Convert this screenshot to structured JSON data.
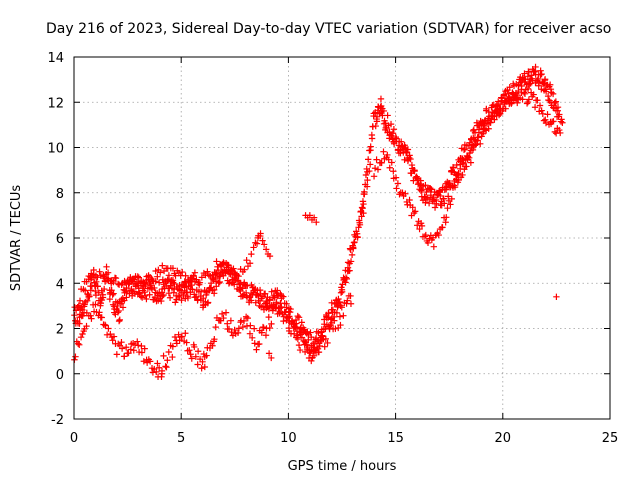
{
  "chart_data": {
    "type": "scatter",
    "title": "Day 216 of 2023, Sidereal Day-to-day VTEC variation (SDTVAR) for receiver acso",
    "xlabel": "GPS time / hours",
    "ylabel": "SDTVAR / TECUs",
    "xlim": [
      0,
      25
    ],
    "ylim": [
      -2,
      14
    ],
    "xticks": [
      "0",
      "5",
      "10",
      "15",
      "20",
      "25"
    ],
    "yticks": [
      "-2",
      "0",
      "2",
      "4",
      "6",
      "8",
      "10",
      "12",
      "14"
    ],
    "grid": true,
    "marker": "+",
    "series": [
      {
        "name": "SDTVAR",
        "color": "#ff0000",
        "trend": [
          [
            0.0,
            2.8
          ],
          [
            0.3,
            2.4
          ],
          [
            0.6,
            3.6
          ],
          [
            0.9,
            4.3
          ],
          [
            1.2,
            3.0
          ],
          [
            1.5,
            4.4
          ],
          [
            1.8,
            3.4
          ],
          [
            2.1,
            2.6
          ],
          [
            2.4,
            3.6
          ],
          [
            2.8,
            3.9
          ],
          [
            3.2,
            3.8
          ],
          [
            3.6,
            3.7
          ],
          [
            4.0,
            3.6
          ],
          [
            4.4,
            3.9
          ],
          [
            4.8,
            3.5
          ],
          [
            5.2,
            3.7
          ],
          [
            5.6,
            3.9
          ],
          [
            6.0,
            3.3
          ],
          [
            6.5,
            3.8
          ],
          [
            7.0,
            4.6
          ],
          [
            7.5,
            4.2
          ],
          [
            8.0,
            3.6
          ],
          [
            8.5,
            3.4
          ],
          [
            9.0,
            3.1
          ],
          [
            9.5,
            3.3
          ],
          [
            10.0,
            2.7
          ],
          [
            10.4,
            2.2
          ],
          [
            10.8,
            1.6
          ],
          [
            11.2,
            1.2
          ],
          [
            11.6,
            1.9
          ],
          [
            12.0,
            2.6
          ],
          [
            12.4,
            3.4
          ],
          [
            12.7,
            4.4
          ],
          [
            13.0,
            5.5
          ],
          [
            13.2,
            6.2
          ],
          [
            13.5,
            7.8
          ],
          [
            13.8,
            9.6
          ],
          [
            14.0,
            11.2
          ],
          [
            14.2,
            11.8
          ],
          [
            14.4,
            11.6
          ],
          [
            14.6,
            11.1
          ],
          [
            14.8,
            10.6
          ],
          [
            15.1,
            10.2
          ],
          [
            15.4,
            9.8
          ],
          [
            15.7,
            9.2
          ],
          [
            16.0,
            8.6
          ],
          [
            16.3,
            8.1
          ],
          [
            16.6,
            7.8
          ],
          [
            16.9,
            7.6
          ],
          [
            17.2,
            7.8
          ],
          [
            17.5,
            8.3
          ],
          [
            17.8,
            9.0
          ],
          [
            18.1,
            9.6
          ],
          [
            18.4,
            10.0
          ],
          [
            18.7,
            10.5
          ],
          [
            19.0,
            11.0
          ],
          [
            19.4,
            11.5
          ],
          [
            19.8,
            11.9
          ],
          [
            20.2,
            12.2
          ],
          [
            20.6,
            12.5
          ],
          [
            21.0,
            12.9
          ],
          [
            21.4,
            13.2
          ],
          [
            21.8,
            13.0
          ],
          [
            22.2,
            12.4
          ],
          [
            22.5,
            11.6
          ],
          [
            22.8,
            10.8
          ]
        ],
        "low_branch": [
          [
            0.0,
            1.0
          ],
          [
            0.5,
            2.2
          ],
          [
            1.0,
            2.8
          ],
          [
            1.5,
            2.0
          ],
          [
            2.0,
            1.2
          ],
          [
            2.5,
            0.9
          ],
          [
            3.0,
            1.1
          ],
          [
            3.5,
            0.6
          ],
          [
            4.0,
            0.1
          ],
          [
            4.5,
            1.0
          ],
          [
            5.0,
            1.8
          ],
          [
            5.5,
            1.0
          ],
          [
            6.0,
            0.4
          ],
          [
            6.5,
            1.8
          ],
          [
            7.0,
            2.6
          ],
          [
            7.5,
            1.6
          ],
          [
            8.0,
            2.6
          ],
          [
            8.5,
            1.4
          ],
          [
            9.0,
            2.2
          ],
          [
            9.5,
            3.0
          ],
          [
            10.0,
            2.4
          ],
          [
            10.5,
            1.4
          ],
          [
            11.0,
            0.9
          ],
          [
            11.5,
            1.2
          ],
          [
            12.0,
            2.0
          ],
          [
            12.5,
            2.6
          ],
          [
            13.0,
            3.6
          ]
        ],
        "high_branch": [
          [
            0.2,
            3.2
          ],
          [
            0.6,
            4.3
          ],
          [
            1.1,
            4.5
          ],
          [
            1.6,
            4.4
          ],
          [
            2.2,
            3.8
          ],
          [
            2.7,
            4.1
          ],
          [
            3.3,
            4.0
          ],
          [
            4.2,
            4.6
          ],
          [
            5.3,
            4.2
          ],
          [
            6.2,
            4.3
          ],
          [
            6.8,
            5.0
          ],
          [
            7.6,
            4.4
          ],
          [
            8.2,
            5.0
          ],
          [
            8.6,
            6.2
          ],
          [
            9.2,
            4.8
          ]
        ],
        "dip_branch": [
          [
            14.0,
            9.0
          ],
          [
            14.5,
            9.8
          ],
          [
            15.0,
            8.6
          ],
          [
            15.5,
            7.6
          ],
          [
            16.0,
            6.8
          ],
          [
            16.4,
            6.0
          ],
          [
            16.8,
            5.8
          ],
          [
            17.2,
            6.6
          ],
          [
            17.6,
            7.8
          ],
          [
            18.0,
            8.8
          ],
          [
            18.5,
            9.6
          ],
          [
            19.0,
            10.4
          ],
          [
            19.6,
            11.4
          ],
          [
            20.2,
            12.0
          ],
          [
            20.8,
            12.3
          ],
          [
            21.3,
            12.2
          ],
          [
            21.8,
            11.6
          ],
          [
            22.2,
            11.2
          ],
          [
            22.6,
            10.6
          ]
        ],
        "isolated": [
          [
            10.8,
            7.0
          ],
          [
            10.9,
            6.9
          ],
          [
            11.0,
            7.0
          ],
          [
            11.1,
            6.8
          ],
          [
            11.2,
            6.9
          ],
          [
            11.3,
            6.7
          ],
          [
            8.6,
            6.1
          ],
          [
            8.7,
            6.2
          ],
          [
            13.5,
            7.5
          ],
          [
            13.5,
            7.1
          ],
          [
            22.5,
            3.4
          ],
          [
            9.1,
            0.9
          ],
          [
            9.2,
            0.7
          ],
          [
            4.1,
            0.0
          ],
          [
            6.1,
            0.3
          ]
        ]
      }
    ]
  }
}
